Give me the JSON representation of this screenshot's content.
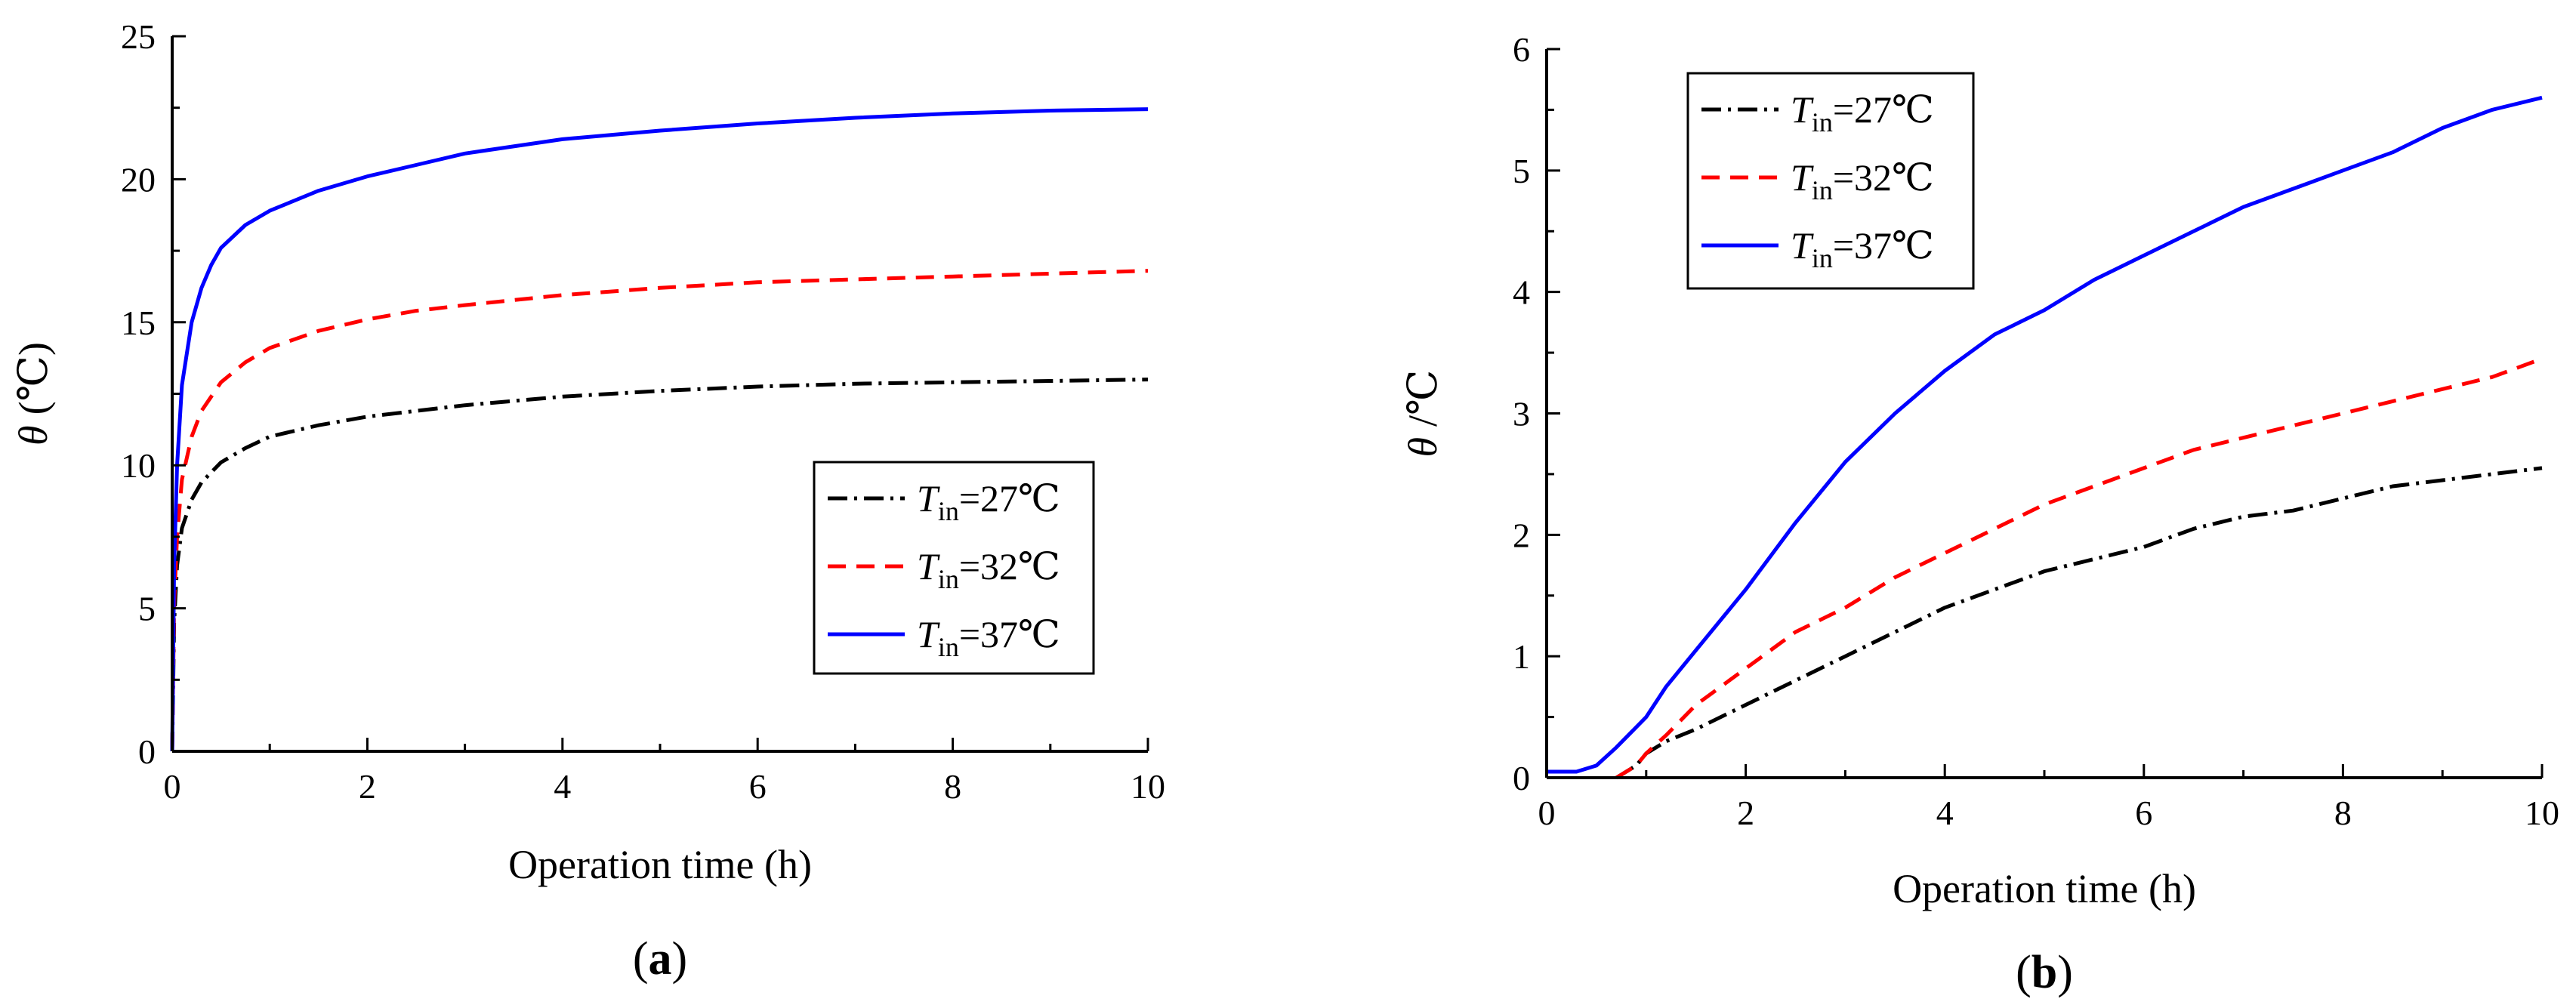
{
  "chart_data": [
    {
      "type": "line",
      "panel_label": "a",
      "xlabel": "Operation time (h)",
      "ylabel_symbol": "θ",
      "ylabel_unit": "(℃)",
      "xlim": [
        0,
        10
      ],
      "ylim": [
        0,
        25
      ],
      "xticks": [
        0,
        2,
        4,
        6,
        8,
        10
      ],
      "yticks": [
        0,
        5,
        10,
        15,
        20,
        25
      ],
      "legend_position": "center-right",
      "series": [
        {
          "name": "Tin=27℃",
          "legend_main": "T",
          "legend_sub": "in",
          "legend_value": "=27℃",
          "color": "#000000",
          "dash": "dashdot",
          "x": [
            0,
            0.02,
            0.05,
            0.1,
            0.2,
            0.3,
            0.5,
            0.75,
            1.0,
            1.5,
            2,
            2.5,
            3,
            4,
            5,
            6,
            7,
            8,
            9,
            10
          ],
          "y": [
            0,
            4.5,
            6.5,
            7.8,
            8.8,
            9.4,
            10.1,
            10.6,
            11.0,
            11.4,
            11.7,
            11.9,
            12.1,
            12.4,
            12.6,
            12.75,
            12.85,
            12.9,
            12.95,
            13.0
          ]
        },
        {
          "name": "Tin=32℃",
          "legend_main": "T",
          "legend_sub": "in",
          "legend_value": "=32℃",
          "color": "#ff0000",
          "dash": "dashed",
          "x": [
            0,
            0.02,
            0.05,
            0.1,
            0.2,
            0.3,
            0.5,
            0.75,
            1.0,
            1.5,
            2,
            2.5,
            3,
            4,
            5,
            6,
            7,
            8,
            9,
            10
          ],
          "y": [
            0,
            5.2,
            7.5,
            9.5,
            11.0,
            11.9,
            12.9,
            13.6,
            14.1,
            14.7,
            15.1,
            15.4,
            15.6,
            15.95,
            16.2,
            16.4,
            16.5,
            16.6,
            16.7,
            16.8
          ]
        },
        {
          "name": "Tin=37℃",
          "legend_main": "T",
          "legend_sub": "in",
          "legend_value": "=37℃",
          "color": "#0000ff",
          "dash": "solid",
          "x": [
            0,
            0.02,
            0.05,
            0.1,
            0.2,
            0.3,
            0.4,
            0.5,
            0.75,
            1.0,
            1.5,
            2,
            2.5,
            3,
            4,
            5,
            6,
            7,
            8,
            9,
            10
          ],
          "y": [
            0,
            6.5,
            10,
            12.8,
            15.0,
            16.2,
            17.0,
            17.6,
            18.4,
            18.9,
            19.6,
            20.1,
            20.5,
            20.9,
            21.4,
            21.7,
            21.95,
            22.15,
            22.3,
            22.4,
            22.45
          ]
        }
      ]
    },
    {
      "type": "line",
      "panel_label": "b",
      "xlabel": "Operation time (h)",
      "ylabel_symbol": "θ",
      "ylabel_unit": "/℃",
      "xlim": [
        0,
        10
      ],
      "ylim": [
        0,
        6
      ],
      "xticks": [
        0,
        2,
        4,
        6,
        8,
        10
      ],
      "yticks": [
        0,
        1,
        2,
        3,
        4,
        5,
        6
      ],
      "legend_position": "top-left",
      "series": [
        {
          "name": "Tin=27℃",
          "legend_main": "T",
          "legend_sub": "in",
          "legend_value": "=27℃",
          "color": "#000000",
          "dash": "dashdot",
          "x": [
            0.7,
            0.9,
            1.0,
            1.2,
            1.5,
            2.0,
            2.5,
            3.0,
            3.5,
            4.0,
            4.5,
            5.0,
            5.5,
            6.0,
            6.5,
            7.0,
            7.5,
            8.0,
            8.5,
            9.0,
            9.5,
            10.0
          ],
          "y": [
            0.0,
            0.1,
            0.2,
            0.3,
            0.4,
            0.6,
            0.8,
            1.0,
            1.2,
            1.4,
            1.55,
            1.7,
            1.8,
            1.9,
            2.05,
            2.15,
            2.2,
            2.3,
            2.4,
            2.45,
            2.5,
            2.55
          ]
        },
        {
          "name": "Tin=32℃",
          "legend_main": "T",
          "legend_sub": "in",
          "legend_value": "=32℃",
          "color": "#ff0000",
          "dash": "dashed",
          "x": [
            0.7,
            0.9,
            1.0,
            1.2,
            1.5,
            2.0,
            2.5,
            3.0,
            3.5,
            4.0,
            4.5,
            5.0,
            5.5,
            6.0,
            6.5,
            7.0,
            7.5,
            8.0,
            8.5,
            9.0,
            9.5,
            10.0
          ],
          "y": [
            0.0,
            0.1,
            0.2,
            0.35,
            0.6,
            0.9,
            1.2,
            1.4,
            1.65,
            1.85,
            2.05,
            2.25,
            2.4,
            2.55,
            2.7,
            2.8,
            2.9,
            3.0,
            3.1,
            3.2,
            3.3,
            3.45
          ]
        },
        {
          "name": "Tin=37℃",
          "legend_main": "T",
          "legend_sub": "in",
          "legend_value": "=37℃",
          "color": "#0000ff",
          "dash": "solid",
          "x": [
            0,
            0.3,
            0.5,
            0.7,
            1.0,
            1.2,
            1.5,
            2.0,
            2.5,
            3.0,
            3.5,
            4.0,
            4.5,
            5.0,
            5.5,
            6.0,
            6.5,
            7.0,
            7.5,
            8.0,
            8.5,
            9.0,
            9.5,
            10.0
          ],
          "y": [
            0.05,
            0.05,
            0.1,
            0.25,
            0.5,
            0.75,
            1.05,
            1.55,
            2.1,
            2.6,
            3.0,
            3.35,
            3.65,
            3.85,
            4.1,
            4.3,
            4.5,
            4.7,
            4.85,
            5.0,
            5.15,
            5.35,
            5.5,
            5.6
          ]
        }
      ]
    }
  ]
}
